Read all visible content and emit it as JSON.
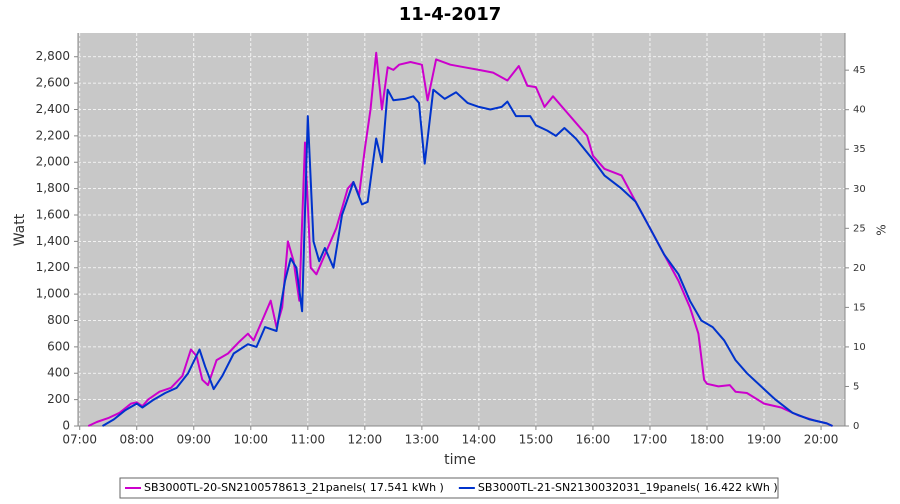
{
  "chart_data": {
    "type": "line",
    "title": "11-4-2017",
    "x_label": "time",
    "y_label": "Watt",
    "y2_label": "%",
    "grid": true,
    "xlim": [
      6.97,
      20.42
    ],
    "xticks": [
      {
        "value": 7,
        "label": "07:00"
      },
      {
        "value": 8,
        "label": "08:00"
      },
      {
        "value": 9,
        "label": "09:00"
      },
      {
        "value": 10,
        "label": "10:00"
      },
      {
        "value": 11,
        "label": "11:00"
      },
      {
        "value": 12,
        "label": "12:00"
      },
      {
        "value": 13,
        "label": "13:00"
      },
      {
        "value": 14,
        "label": "14:00"
      },
      {
        "value": 15,
        "label": "15:00"
      },
      {
        "value": 16,
        "label": "16:00"
      },
      {
        "value": 17,
        "label": "17:00"
      },
      {
        "value": 18,
        "label": "18:00"
      },
      {
        "value": 19,
        "label": "19:00"
      },
      {
        "value": 20,
        "label": "20:00"
      }
    ],
    "ylim": [
      0,
      2980
    ],
    "yticks": [
      0,
      200,
      400,
      600,
      800,
      {
        "value": 1000,
        "label": "1,000"
      },
      {
        "value": 1200,
        "label": "1,200"
      },
      {
        "value": 1400,
        "label": "1,400"
      },
      {
        "value": 1600,
        "label": "1,600"
      },
      {
        "value": 1800,
        "label": "1,800"
      },
      {
        "value": 2000,
        "label": "2,000"
      },
      {
        "value": 2200,
        "label": "2,200"
      },
      {
        "value": 2400,
        "label": "2,400"
      },
      {
        "value": 2600,
        "label": "2,600"
      },
      {
        "value": 2800,
        "label": "2,800"
      }
    ],
    "y2lim": [
      0,
      49.7
    ],
    "y2ticks": [
      0,
      5,
      10,
      15,
      20,
      25,
      30,
      35,
      40,
      45
    ],
    "series": [
      {
        "name": "SB3000TL-20-SN2100578613_21panels( 17.541 kWh )",
        "color": "#cc00cc",
        "x": [
          7.15,
          7.3,
          7.5,
          7.7,
          7.9,
          8.0,
          8.1,
          8.2,
          8.4,
          8.6,
          8.8,
          8.95,
          9.05,
          9.15,
          9.25,
          9.4,
          9.6,
          9.8,
          9.95,
          10.05,
          10.2,
          10.35,
          10.45,
          10.55,
          10.65,
          10.75,
          10.85,
          10.95,
          11.05,
          11.15,
          11.3,
          11.5,
          11.7,
          11.8,
          11.9,
          12.0,
          12.1,
          12.2,
          12.3,
          12.4,
          12.5,
          12.6,
          12.8,
          13.0,
          13.1,
          13.25,
          13.5,
          13.75,
          14.0,
          14.25,
          14.5,
          14.7,
          14.85,
          15.0,
          15.15,
          15.3,
          15.5,
          15.7,
          15.9,
          16.0,
          16.2,
          16.5,
          16.75,
          17.0,
          17.25,
          17.5,
          17.7,
          17.85,
          17.95,
          18.0,
          18.2,
          18.4,
          18.5,
          18.7,
          19.0,
          19.3,
          19.6,
          19.9,
          20.1,
          20.2
        ],
        "values": [
          0,
          30,
          60,
          100,
          170,
          180,
          150,
          200,
          260,
          290,
          380,
          580,
          530,
          350,
          310,
          500,
          550,
          640,
          700,
          650,
          800,
          950,
          750,
          900,
          1400,
          1250,
          950,
          2150,
          1200,
          1150,
          1300,
          1500,
          1800,
          1850,
          1750,
          2100,
          2400,
          2830,
          2400,
          2720,
          2700,
          2740,
          2760,
          2740,
          2470,
          2780,
          2740,
          2720,
          2700,
          2680,
          2620,
          2730,
          2580,
          2570,
          2420,
          2500,
          2400,
          2300,
          2200,
          2050,
          1950,
          1900,
          1700,
          1500,
          1300,
          1100,
          900,
          700,
          350,
          320,
          300,
          310,
          260,
          250,
          170,
          140,
          80,
          40,
          20,
          0
        ]
      },
      {
        "name": "SB3000TL-21-SN2130032031_19panels( 16.422 kWh )",
        "color": "#0033cc",
        "x": [
          7.4,
          7.6,
          7.8,
          8.0,
          8.1,
          8.3,
          8.5,
          8.7,
          8.9,
          9.1,
          9.2,
          9.35,
          9.5,
          9.7,
          9.95,
          10.1,
          10.25,
          10.45,
          10.6,
          10.7,
          10.8,
          10.9,
          11.0,
          11.1,
          11.2,
          11.3,
          11.45,
          11.6,
          11.8,
          11.95,
          12.05,
          12.2,
          12.3,
          12.4,
          12.5,
          12.7,
          12.85,
          12.95,
          13.05,
          13.2,
          13.4,
          13.6,
          13.8,
          14.0,
          14.2,
          14.4,
          14.5,
          14.65,
          14.9,
          15.0,
          15.2,
          15.35,
          15.5,
          15.7,
          16.0,
          16.2,
          16.5,
          16.75,
          17.0,
          17.25,
          17.5,
          17.7,
          17.9,
          18.1,
          18.3,
          18.5,
          18.7,
          19.0,
          19.2,
          19.5,
          19.8,
          20.1,
          20.2
        ],
        "values": [
          0,
          50,
          120,
          170,
          140,
          200,
          250,
          290,
          400,
          580,
          450,
          280,
          380,
          550,
          620,
          600,
          750,
          720,
          1100,
          1270,
          1200,
          870,
          2350,
          1400,
          1250,
          1350,
          1200,
          1600,
          1850,
          1680,
          1700,
          2180,
          2000,
          2550,
          2470,
          2480,
          2500,
          2450,
          1990,
          2550,
          2480,
          2530,
          2450,
          2420,
          2400,
          2420,
          2460,
          2350,
          2350,
          2280,
          2240,
          2200,
          2260,
          2180,
          2020,
          1900,
          1800,
          1700,
          1500,
          1300,
          1150,
          950,
          800,
          750,
          650,
          500,
          400,
          280,
          200,
          100,
          50,
          20,
          0
        ]
      }
    ]
  }
}
